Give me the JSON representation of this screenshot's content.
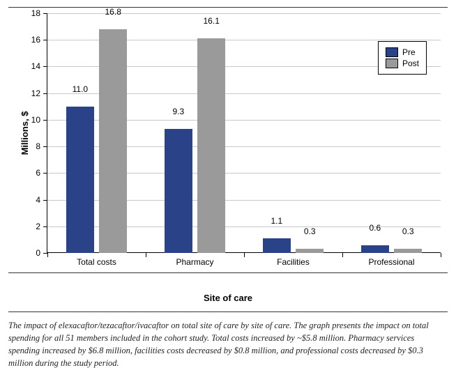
{
  "chart": {
    "type": "bar",
    "ylabel": "Millions, $",
    "xlabel": "Site of care",
    "ylim": [
      0,
      18
    ],
    "ytick_step": 2,
    "yticks": [
      0,
      2,
      4,
      6,
      8,
      10,
      12,
      14,
      16,
      18
    ],
    "categories": [
      "Total costs",
      "Pharmacy",
      "Facilities",
      "Professional"
    ],
    "series": [
      {
        "name": "Pre",
        "color": "#2a4287",
        "values": [
          11.0,
          9.3,
          1.1,
          0.6
        ]
      },
      {
        "name": "Post",
        "color": "#9a9a9a",
        "values": [
          16.8,
          16.1,
          0.3,
          0.3
        ]
      }
    ],
    "value_labels": [
      [
        "11.0",
        "16.8"
      ],
      [
        "9.3",
        "16.1"
      ],
      [
        "1.1",
        "0.3"
      ],
      [
        "0.6",
        "0.3"
      ]
    ],
    "bar_width_pct": 7.0,
    "bar_gap_pct": 1.4,
    "group_positions_pct": [
      12.5,
      37.5,
      62.5,
      87.5
    ],
    "grid_color": "#c8c8c8",
    "background_color": "#ffffff",
    "label_fontsize": 12,
    "axis_fontsize": 13
  },
  "legend": {
    "items": [
      {
        "label": "Pre",
        "color": "#2a4287"
      },
      {
        "label": "Post",
        "color": "#9a9a9a"
      }
    ]
  },
  "caption": "The impact of elexacaftor/tezacaftor/ivacaftor on total site of care by site of care. The graph presents the impact on total spending for all 51 members included in the cohort study. Total costs increased by ~$5.8 million. Pharmacy services spending increased by $6.8 million, facilities costs decreased by $0.8 million, and professional costs decreased by $0.3 million during the study period."
}
